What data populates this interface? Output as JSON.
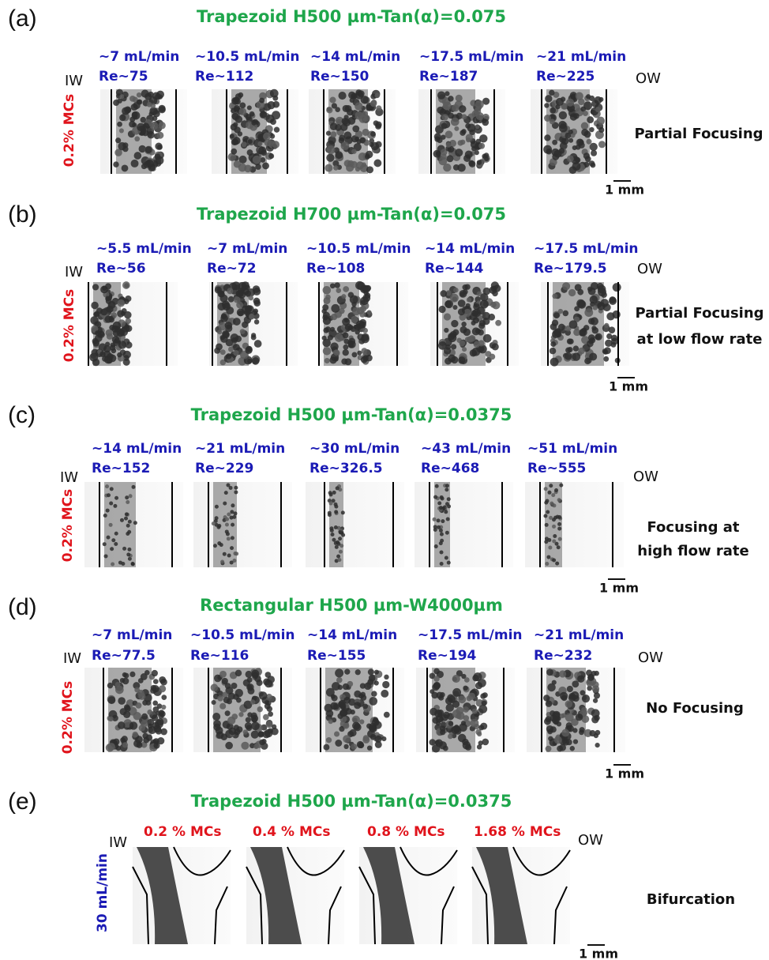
{
  "panels": [
    {
      "label": "(a)",
      "title": "Trapezoid H500 µm-Tan(α)=0.075",
      "conditions": [
        [
          "~7 mL/min",
          "Re~75"
        ],
        [
          "~10.5 mL/min",
          "Re~112"
        ],
        [
          "~14 mL/min",
          "Re~150"
        ],
        [
          "~17.5 mL/min",
          "Re~187"
        ],
        [
          "~21 mL/min",
          "Re~225"
        ]
      ],
      "inner_wall": "IW",
      "outer_wall": "OW",
      "side_label": "0.2% MCs",
      "result": [
        "Partial Focusing"
      ],
      "scale": "1 mm"
    },
    {
      "label": "(b)",
      "title": "Trapezoid H700 µm-Tan(α)=0.075",
      "conditions": [
        [
          "~5.5 mL/min",
          "Re~56"
        ],
        [
          "~7 mL/min",
          "Re~72"
        ],
        [
          "~10.5 mL/min",
          "Re~108"
        ],
        [
          "~14 mL/min",
          "Re~144"
        ],
        [
          "~17.5 mL/min",
          "Re~179.5"
        ]
      ],
      "inner_wall": "IW",
      "outer_wall": "OW",
      "side_label": "0.2% MCs",
      "result": [
        "Partial Focusing",
        "at low flow rate"
      ],
      "scale": "1 mm"
    },
    {
      "label": "(c)",
      "title": "Trapezoid H500 µm-Tan(α)=0.0375",
      "conditions": [
        [
          "~14 mL/min",
          "Re~152"
        ],
        [
          "~21 mL/min",
          "Re~229"
        ],
        [
          "~30 mL/min",
          "Re~326.5"
        ],
        [
          "~43 mL/min",
          "Re~468"
        ],
        [
          "~51 mL/min",
          "Re~555"
        ]
      ],
      "inner_wall": "IW",
      "outer_wall": "OW",
      "side_label": "0.2% MCs",
      "result": [
        "Focusing  at",
        "high flow rate"
      ],
      "scale": "1 mm"
    },
    {
      "label": "(d)",
      "title": "Rectangular H500 µm-W4000µm",
      "conditions": [
        [
          "~7 mL/min",
          "Re~77.5"
        ],
        [
          "~10.5 mL/min",
          "Re~116"
        ],
        [
          "~14 mL/min",
          "Re~155"
        ],
        [
          "~17.5 mL/min",
          "Re~194"
        ],
        [
          "~21 mL/min",
          "Re~232"
        ]
      ],
      "inner_wall": "IW",
      "outer_wall": "OW",
      "side_label": "0.2% MCs",
      "result": [
        "No Focusing"
      ],
      "scale": "1 mm"
    },
    {
      "label": "(e)",
      "title": "Trapezoid H500 µm-Tan(α)=0.0375",
      "conditions": [
        [
          "0.2 % MCs"
        ],
        [
          "0.4 % MCs"
        ],
        [
          "0.8 % MCs"
        ],
        [
          "1.68 % MCs"
        ]
      ],
      "inner_wall": "IW",
      "outer_wall": "OW",
      "side_label": "30 mL/min",
      "result": [
        "Bifurcation"
      ],
      "scale": "1 mm"
    }
  ]
}
